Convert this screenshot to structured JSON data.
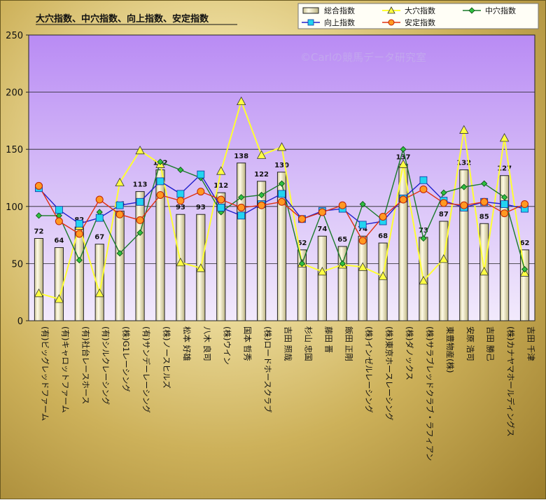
{
  "chart_data": {
    "type": "bar",
    "title": "大穴指数、中穴指数、向上指数、安定指数",
    "watermark": "©Carlの競馬データ研究室",
    "ylim": [
      0,
      250
    ],
    "yticks": [
      0,
      50,
      100,
      150,
      200,
      250
    ],
    "categories": [
      "(有)ビッグレッドファーム",
      "(有)キャロットファーム",
      "(有)社台レースホース",
      "(有)シルクレーシング",
      "(株)G1レーシング",
      "(有)サンデーレーシング",
      "(株)ノースヒルズ",
      "松本 好雄",
      "八木 良司",
      "(株)ウイン",
      "国本 哲秀",
      "(株)ロードホースクラブ",
      "吉田 照哉",
      "杉山 忠国",
      "藤田 晋",
      "飯田 正剛",
      "(株)インゼルレーシング",
      "(株)東京ホースレーシング",
      "(株)ダノックス",
      "(株)サラブレッドクラブ・ラフィアン",
      "東豊物産(株)",
      "安原 浩司",
      "吉田 勝己",
      "(株)カナヤマホールディングス",
      "吉田 千津"
    ],
    "series": [
      {
        "name": "総合指数",
        "kind": "bar",
        "color": "#f6f1c8",
        "values": [
          72,
          64,
          82,
          67,
          96,
          113,
          132,
          93,
          93,
          112,
          138,
          122,
          130,
          62,
          74,
          65,
          74,
          68,
          137,
          73,
          87,
          132,
          85,
          127,
          62
        ],
        "labels": [
          "72",
          "64",
          "82",
          "67",
          "96",
          "113",
          "132",
          "93",
          "93",
          "112",
          "138",
          "122",
          "130",
          "62",
          "74",
          "65",
          "74",
          "68",
          "137",
          "73",
          "87",
          "132",
          "85",
          "127",
          "62"
        ]
      },
      {
        "name": "大穴指数",
        "kind": "line",
        "marker": "triangle",
        "color": "#ffff33",
        "values": [
          24,
          19,
          83,
          24,
          121,
          149,
          137,
          51,
          46,
          131,
          192,
          145,
          152,
          50,
          43,
          49,
          47,
          39,
          137,
          35,
          54,
          167,
          43,
          160,
          42
        ]
      },
      {
        "name": "中穴指数",
        "kind": "line",
        "marker": "diamond",
        "color": "#1a7a2a",
        "values": [
          92,
          92,
          53,
          95,
          59,
          77,
          139,
          132,
          125,
          95,
          108,
          110,
          120,
          50,
          96,
          50,
          102,
          88,
          150,
          72,
          112,
          117,
          120,
          108,
          45
        ]
      },
      {
        "name": "向上指数",
        "kind": "line",
        "marker": "square",
        "color": "#2020cc",
        "values": [
          116,
          97,
          85,
          90,
          101,
          104,
          122,
          111,
          128,
          99,
          92,
          102,
          111,
          89,
          96,
          98,
          84,
          87,
          107,
          123,
          105,
          99,
          104,
          102,
          98
        ]
      },
      {
        "name": "安定指数",
        "kind": "line",
        "marker": "circle",
        "color": "#e03010",
        "values": [
          118,
          87,
          76,
          106,
          93,
          88,
          110,
          105,
          113,
          106,
          99,
          101,
          104,
          89,
          95,
          101,
          70,
          91,
          106,
          115,
          103,
          101,
          104,
          94,
          102
        ]
      }
    ]
  }
}
